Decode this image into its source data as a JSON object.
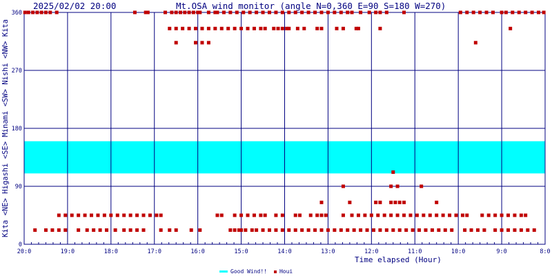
{
  "title_datetime": "2025/02/02 20:00",
  "title_main": "Mt.OSA wind monitor (angle N=0,360 E=90 S=180 W=270)",
  "y_axis_label": "Kita <NE> Higashi <SE> Minami <SW> Nishi <NW> Kita",
  "x_axis_label": "Time elapsed (Hour)",
  "legend": {
    "good_label": "Good Wind!!",
    "houi_label": "Houi"
  },
  "colors": {
    "frame": "#000080",
    "good_band": "#00ffff",
    "marker": "#c00000",
    "text": "#000080"
  },
  "chart_data": {
    "type": "scatter",
    "title": "Mt.OSA wind monitor (angle N=0,360 E=90 S=180 W=270)",
    "xlabel": "Time elapsed (Hour)",
    "ylabel": "Kita <NE> Higashi <SE> Minami <SW> Nishi <NW> Kita",
    "x_ticks": [
      "20:0",
      "19:0",
      "18:0",
      "17:0",
      "16:0",
      "15:0",
      "14:0",
      "13:0",
      "12:0",
      "11:0",
      "10:0",
      "9:0",
      "8:0"
    ],
    "x_range_hours_elapsed": [
      0,
      12
    ],
    "ylim": [
      0,
      360
    ],
    "y_ticks": [
      0,
      90,
      180,
      270,
      360
    ],
    "good_wind_band": {
      "from_deg": 110,
      "to_deg": 160
    },
    "series": [
      {
        "name": "Houi",
        "points": [
          [
            0.02,
            360
          ],
          [
            0.1,
            360
          ],
          [
            0.2,
            360
          ],
          [
            0.3,
            360
          ],
          [
            0.4,
            360
          ],
          [
            0.5,
            360
          ],
          [
            0.6,
            360
          ],
          [
            0.75,
            360
          ],
          [
            2.55,
            360
          ],
          [
            2.8,
            360
          ],
          [
            2.85,
            360
          ],
          [
            3.25,
            360
          ],
          [
            3.4,
            360
          ],
          [
            3.5,
            360
          ],
          [
            3.6,
            360
          ],
          [
            3.7,
            360
          ],
          [
            3.8,
            360
          ],
          [
            3.9,
            360
          ],
          [
            4.0,
            360
          ],
          [
            4.05,
            360
          ],
          [
            4.25,
            360
          ],
          [
            4.4,
            360
          ],
          [
            4.45,
            360
          ],
          [
            4.6,
            360
          ],
          [
            4.75,
            360
          ],
          [
            4.9,
            360
          ],
          [
            5.05,
            360
          ],
          [
            5.2,
            360
          ],
          [
            5.35,
            360
          ],
          [
            5.5,
            360
          ],
          [
            5.65,
            360
          ],
          [
            5.8,
            360
          ],
          [
            5.95,
            360
          ],
          [
            6.1,
            360
          ],
          [
            6.25,
            360
          ],
          [
            6.4,
            360
          ],
          [
            6.55,
            360
          ],
          [
            6.7,
            360
          ],
          [
            6.85,
            360
          ],
          [
            7.0,
            360
          ],
          [
            7.15,
            360
          ],
          [
            7.3,
            360
          ],
          [
            7.45,
            360
          ],
          [
            7.55,
            360
          ],
          [
            7.75,
            360
          ],
          [
            7.95,
            360
          ],
          [
            8.1,
            360
          ],
          [
            8.2,
            360
          ],
          [
            8.35,
            360
          ],
          [
            8.75,
            360
          ],
          [
            10.05,
            360
          ],
          [
            10.2,
            360
          ],
          [
            10.35,
            360
          ],
          [
            10.5,
            360
          ],
          [
            10.65,
            360
          ],
          [
            10.8,
            360
          ],
          [
            11.0,
            360
          ],
          [
            11.1,
            360
          ],
          [
            11.25,
            360
          ],
          [
            11.4,
            360
          ],
          [
            11.55,
            360
          ],
          [
            11.7,
            360
          ],
          [
            11.85,
            360
          ],
          [
            11.97,
            360
          ],
          [
            3.35,
            335
          ],
          [
            3.5,
            335
          ],
          [
            3.65,
            335
          ],
          [
            3.8,
            335
          ],
          [
            3.95,
            335
          ],
          [
            4.1,
            335
          ],
          [
            4.25,
            335
          ],
          [
            4.4,
            335
          ],
          [
            4.55,
            335
          ],
          [
            4.7,
            335
          ],
          [
            4.85,
            335
          ],
          [
            5.0,
            335
          ],
          [
            5.15,
            335
          ],
          [
            5.3,
            335
          ],
          [
            5.45,
            335
          ],
          [
            5.55,
            335
          ],
          [
            5.75,
            335
          ],
          [
            5.85,
            335
          ],
          [
            5.95,
            335
          ],
          [
            6.05,
            335
          ],
          [
            6.1,
            335
          ],
          [
            6.3,
            335
          ],
          [
            6.45,
            335
          ],
          [
            6.75,
            335
          ],
          [
            6.85,
            335
          ],
          [
            7.2,
            335
          ],
          [
            7.35,
            335
          ],
          [
            7.65,
            335
          ],
          [
            7.7,
            335
          ],
          [
            8.2,
            335
          ],
          [
            11.2,
            335
          ],
          [
            3.5,
            313
          ],
          [
            3.95,
            313
          ],
          [
            4.1,
            313
          ],
          [
            4.25,
            313
          ],
          [
            10.4,
            313
          ],
          [
            0.8,
            45
          ],
          [
            0.95,
            45
          ],
          [
            1.1,
            45
          ],
          [
            1.25,
            45
          ],
          [
            1.4,
            45
          ],
          [
            1.55,
            45
          ],
          [
            1.7,
            45
          ],
          [
            1.85,
            45
          ],
          [
            2.0,
            45
          ],
          [
            2.15,
            45
          ],
          [
            2.3,
            45
          ],
          [
            2.45,
            45
          ],
          [
            2.6,
            45
          ],
          [
            2.75,
            45
          ],
          [
            2.9,
            45
          ],
          [
            3.05,
            45
          ],
          [
            3.15,
            45
          ],
          [
            4.45,
            45
          ],
          [
            4.55,
            45
          ],
          [
            4.85,
            45
          ],
          [
            5.0,
            45
          ],
          [
            5.15,
            45
          ],
          [
            5.3,
            45
          ],
          [
            5.45,
            45
          ],
          [
            5.55,
            45
          ],
          [
            5.8,
            45
          ],
          [
            5.95,
            45
          ],
          [
            6.25,
            45
          ],
          [
            6.35,
            45
          ],
          [
            6.6,
            45
          ],
          [
            6.75,
            45
          ],
          [
            6.85,
            45
          ],
          [
            6.95,
            45
          ],
          [
            7.35,
            45
          ],
          [
            7.55,
            45
          ],
          [
            7.7,
            45
          ],
          [
            7.85,
            45
          ],
          [
            8.0,
            45
          ],
          [
            8.15,
            45
          ],
          [
            8.3,
            45
          ],
          [
            8.45,
            45
          ],
          [
            8.6,
            45
          ],
          [
            8.75,
            45
          ],
          [
            8.9,
            45
          ],
          [
            9.05,
            45
          ],
          [
            9.2,
            45
          ],
          [
            9.35,
            45
          ],
          [
            9.5,
            45
          ],
          [
            9.65,
            45
          ],
          [
            9.8,
            45
          ],
          [
            9.95,
            45
          ],
          [
            10.1,
            45
          ],
          [
            10.2,
            45
          ],
          [
            10.55,
            45
          ],
          [
            10.7,
            45
          ],
          [
            10.85,
            45
          ],
          [
            11.0,
            45
          ],
          [
            11.15,
            45
          ],
          [
            11.3,
            45
          ],
          [
            11.45,
            45
          ],
          [
            11.55,
            45
          ],
          [
            0.25,
            22
          ],
          [
            0.5,
            22
          ],
          [
            0.65,
            22
          ],
          [
            0.8,
            22
          ],
          [
            0.95,
            22
          ],
          [
            1.25,
            22
          ],
          [
            1.45,
            22
          ],
          [
            1.6,
            22
          ],
          [
            1.75,
            22
          ],
          [
            1.9,
            22
          ],
          [
            2.1,
            22
          ],
          [
            2.3,
            22
          ],
          [
            2.45,
            22
          ],
          [
            2.6,
            22
          ],
          [
            2.75,
            22
          ],
          [
            3.15,
            22
          ],
          [
            3.35,
            22
          ],
          [
            3.5,
            22
          ],
          [
            3.85,
            22
          ],
          [
            4.05,
            22
          ],
          [
            4.75,
            22
          ],
          [
            4.85,
            22
          ],
          [
            4.95,
            22
          ],
          [
            5.0,
            22
          ],
          [
            5.1,
            22
          ],
          [
            5.25,
            22
          ],
          [
            5.35,
            22
          ],
          [
            5.5,
            22
          ],
          [
            5.65,
            22
          ],
          [
            5.8,
            22
          ],
          [
            5.95,
            22
          ],
          [
            6.1,
            22
          ],
          [
            6.25,
            22
          ],
          [
            6.4,
            22
          ],
          [
            6.55,
            22
          ],
          [
            6.7,
            22
          ],
          [
            6.85,
            22
          ],
          [
            7.0,
            22
          ],
          [
            7.15,
            22
          ],
          [
            7.3,
            22
          ],
          [
            7.45,
            22
          ],
          [
            7.6,
            22
          ],
          [
            7.75,
            22
          ],
          [
            7.9,
            22
          ],
          [
            8.05,
            22
          ],
          [
            8.2,
            22
          ],
          [
            8.35,
            22
          ],
          [
            8.5,
            22
          ],
          [
            8.65,
            22
          ],
          [
            8.8,
            22
          ],
          [
            8.95,
            22
          ],
          [
            9.1,
            22
          ],
          [
            9.25,
            22
          ],
          [
            9.4,
            22
          ],
          [
            9.55,
            22
          ],
          [
            9.7,
            22
          ],
          [
            9.85,
            22
          ],
          [
            10.15,
            22
          ],
          [
            10.3,
            22
          ],
          [
            10.45,
            22
          ],
          [
            10.6,
            22
          ],
          [
            10.85,
            22
          ],
          [
            11.0,
            22
          ],
          [
            11.15,
            22
          ],
          [
            11.3,
            22
          ],
          [
            11.45,
            22
          ],
          [
            11.6,
            22
          ],
          [
            11.75,
            22
          ],
          [
            6.85,
            65
          ],
          [
            7.5,
            65
          ],
          [
            8.1,
            65
          ],
          [
            8.2,
            65
          ],
          [
            8.45,
            65
          ],
          [
            8.55,
            65
          ],
          [
            8.65,
            65
          ],
          [
            8.75,
            65
          ],
          [
            9.5,
            65
          ],
          [
            7.35,
            90
          ],
          [
            8.45,
            90
          ],
          [
            8.6,
            90
          ],
          [
            9.15,
            90
          ],
          [
            8.5,
            112
          ]
        ]
      }
    ]
  }
}
